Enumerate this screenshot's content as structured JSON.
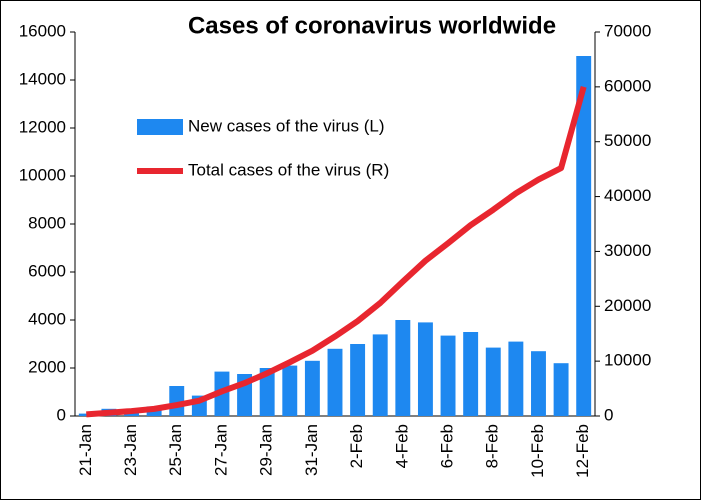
{
  "chart_data": {
    "type": "bar_line",
    "title": "Cases of coronavirus worldwide",
    "categories": [
      "21-Jan",
      null,
      "23-Jan",
      null,
      "25-Jan",
      null,
      "27-Jan",
      null,
      "29-Jan",
      null,
      "31-Jan",
      null,
      "2-Feb",
      null,
      "4-Feb",
      null,
      "6-Feb",
      null,
      "8-Feb",
      null,
      "10-Feb",
      null,
      "12-Feb"
    ],
    "series": [
      {
        "name": "New cases of the virus (L)",
        "type": "bar",
        "color": "#1e88f0",
        "values": [
          100,
          300,
          280,
          400,
          1250,
          850,
          1850,
          1750,
          2000,
          2100,
          2300,
          2800,
          3000,
          3400,
          4000,
          3900,
          3350,
          3500,
          2850,
          3100,
          2700,
          2200,
          15000
        ]
      },
      {
        "name": "Total cases of the virus (R)",
        "type": "line",
        "axis": "y2",
        "color": "#e8262f",
        "values": [
          300,
          600,
          900,
          1300,
          2000,
          2800,
          4500,
          6000,
          7800,
          9800,
          11900,
          14500,
          17300,
          20600,
          24500,
          28300,
          31500,
          34800,
          37600,
          40600,
          43100,
          45200,
          60000
        ]
      }
    ],
    "ylim": [
      0,
      16000
    ],
    "yticks": [
      0,
      2000,
      4000,
      6000,
      8000,
      10000,
      12000,
      14000,
      16000
    ],
    "y2lim": [
      0,
      70000
    ],
    "y2ticks": [
      0,
      10000,
      20000,
      30000,
      40000,
      50000,
      60000,
      70000
    ]
  }
}
